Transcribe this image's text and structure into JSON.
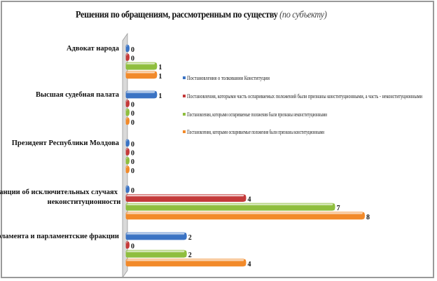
{
  "chart_data": {
    "type": "bar",
    "orientation": "horizontal",
    "title": "Решения по обращениям, рассмотренным по существу",
    "subtitle": "(по субъекту)",
    "categories": [
      "Адвокат народа",
      "Высшая судебная палата",
      "Президент Республики Молдова",
      "Судебные инстанции об исключительных случаях неконституционности",
      "Депутаты Парламента и парламентские фракции"
    ],
    "series": [
      {
        "name": "Постановления о толковании Конституции",
        "color": "#3a73c4",
        "values": [
          0,
          1,
          0,
          0,
          2
        ]
      },
      {
        "name": "Постановления, которыми часть оспариваемых положений были признаны конституционными, а часть - неконституционными",
        "color": "#c43a3a",
        "values": [
          0,
          0,
          0,
          4,
          0
        ]
      },
      {
        "name": "Постановления, которыми оспариваемые положения были признаны неконституционными",
        "color": "#8fbe3e",
        "values": [
          1,
          0,
          0,
          7,
          2
        ]
      },
      {
        "name": "Постановления, которыми оспариваемые положения были признаны конституционными",
        "color": "#f28a2a",
        "values": [
          1,
          0,
          0,
          8,
          4
        ]
      }
    ],
    "xlim": [
      0,
      8
    ],
    "legend_position": "right",
    "grid": false,
    "data_labels": true
  }
}
